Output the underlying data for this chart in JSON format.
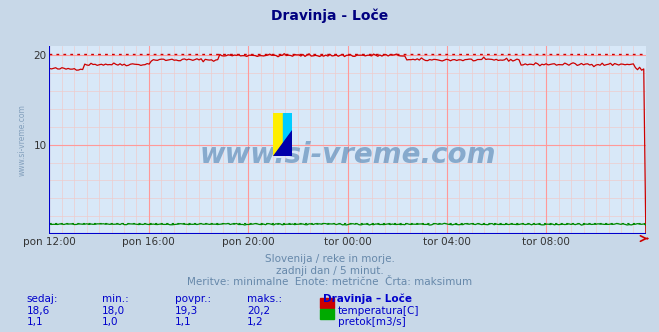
{
  "title": "Dravinja - Loče",
  "title_color": "#000080",
  "bg_color": "#c8d8e8",
  "plot_bg_color": "#d8e8f8",
  "grid_color_major": "#ff9999",
  "grid_color_minor": "#eecccc",
  "x_tick_labels": [
    "pon 12:00",
    "pon 16:00",
    "pon 20:00",
    "tor 00:00",
    "tor 04:00",
    "tor 08:00"
  ],
  "x_tick_positions": [
    0.0,
    0.1667,
    0.3333,
    0.5,
    0.6667,
    0.8333
  ],
  "ylim": [
    0,
    21
  ],
  "ytick_vals": [
    10,
    20
  ],
  "watermark": "www.si-vreme.com",
  "subtitle1": "Slovenija / reke in morje.",
  "subtitle2": "zadnji dan / 5 minut.",
  "subtitle3": "Meritve: minimalne  Enote: metrične  Črta: maksimum",
  "subtitle_color": "#6688aa",
  "table_headers": [
    "sedaj:",
    "min.:",
    "povpr.:",
    "maks.:",
    "Dravinja – Loče"
  ],
  "table_row1": [
    "18,6",
    "18,0",
    "19,3",
    "20,2",
    "temperatura[C]"
  ],
  "table_row2": [
    "1,1",
    "1,0",
    "1,1",
    "1,2",
    "pretok[m3/s]"
  ],
  "table_color": "#0000cc",
  "legend_color1": "#cc0000",
  "legend_color2": "#00aa00",
  "temp_max_line": 20.2,
  "flow_max_line": 1.2,
  "temp_line_color": "#cc0000",
  "flow_line_color": "#008800",
  "left_axis_color": "#0000cc",
  "bottom_axis_color": "#0000cc",
  "arrow_color": "#cc0000",
  "watermark_color": "#4477aa",
  "logo_yellow": "#ffee00",
  "logo_cyan": "#00ccff",
  "logo_blue": "#0000aa"
}
